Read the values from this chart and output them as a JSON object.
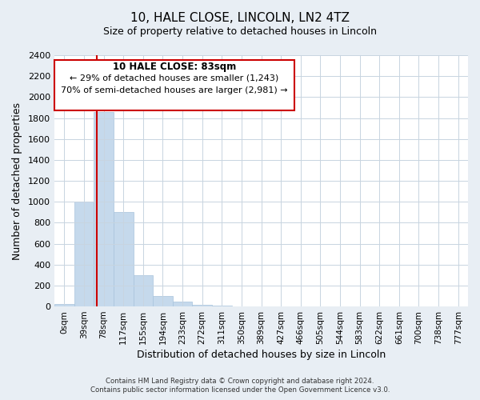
{
  "title1": "10, HALE CLOSE, LINCOLN, LN2 4TZ",
  "title2": "Size of property relative to detached houses in Lincoln",
  "xlabel": "Distribution of detached houses by size in Lincoln",
  "ylabel": "Number of detached properties",
  "bar_labels": [
    "0sqm",
    "39sqm",
    "78sqm",
    "117sqm",
    "155sqm",
    "194sqm",
    "233sqm",
    "272sqm",
    "311sqm",
    "350sqm",
    "389sqm",
    "427sqm",
    "466sqm",
    "505sqm",
    "544sqm",
    "583sqm",
    "622sqm",
    "661sqm",
    "700sqm",
    "738sqm",
    "777sqm"
  ],
  "bar_values": [
    20,
    1005,
    1860,
    900,
    300,
    100,
    45,
    15,
    5,
    0,
    0,
    0,
    0,
    0,
    0,
    0,
    0,
    0,
    0,
    0,
    0
  ],
  "bar_color": "#c5d9ec",
  "bar_edge_color": "#a8c4dc",
  "vline_x": 2.14,
  "vline_color": "#cc0000",
  "ylim": [
    0,
    2400
  ],
  "yticks": [
    0,
    200,
    400,
    600,
    800,
    1000,
    1200,
    1400,
    1600,
    1800,
    2000,
    2200,
    2400
  ],
  "annotation_title": "10 HALE CLOSE: 83sqm",
  "annotation_line1": "← 29% of detached houses are smaller (1,243)",
  "annotation_line2": "70% of semi-detached houses are larger (2,981) →",
  "footer1": "Contains HM Land Registry data © Crown copyright and database right 2024.",
  "footer2": "Contains public sector information licensed under the Open Government Licence v3.0.",
  "bg_color": "#e8eef4",
  "plot_bg_color": "#ffffff",
  "grid_color": "#c8d4e0"
}
